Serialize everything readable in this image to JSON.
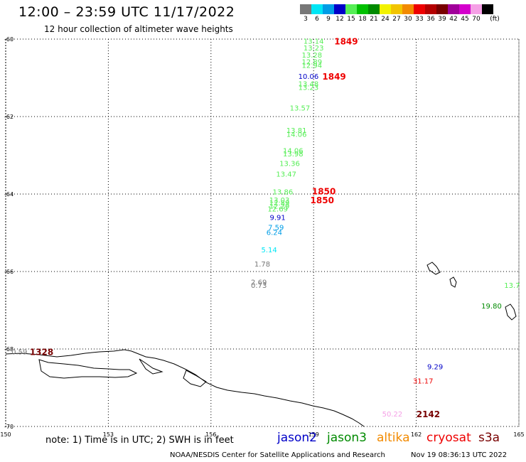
{
  "header": {
    "title": "12:00 – 23:59 UTC 11/17/2022",
    "subtitle": "12 hour collection of altimeter wave heights"
  },
  "legend": {
    "unit": "(ft)",
    "items": [
      {
        "label": "3",
        "color": "#777777"
      },
      {
        "label": "6",
        "color": "#00e6f5"
      },
      {
        "label": "9",
        "color": "#009de6"
      },
      {
        "label": "12",
        "color": "#0000c8"
      },
      {
        "label": "15",
        "color": "#55ee55"
      },
      {
        "label": "18",
        "color": "#00c000"
      },
      {
        "label": "21",
        "color": "#008a00"
      },
      {
        "label": "24",
        "color": "#f2f200"
      },
      {
        "label": "27",
        "color": "#f2c400"
      },
      {
        "label": "30",
        "color": "#f28a00"
      },
      {
        "label": "33",
        "color": "#ee0000"
      },
      {
        "label": "36",
        "color": "#b40000"
      },
      {
        "label": "39",
        "color": "#780000"
      },
      {
        "label": "42",
        "color": "#a0009a"
      },
      {
        "label": "45",
        "color": "#d400cc"
      },
      {
        "label": "70",
        "color": "#f5a0e6"
      },
      {
        "label": "",
        "color": "#000000"
      }
    ]
  },
  "map": {
    "lat_labels": [
      {
        "label": "-60",
        "lat": -60
      },
      {
        "label": "-62",
        "lat": -62
      },
      {
        "label": "-64",
        "lat": -64
      },
      {
        "label": "-66",
        "lat": -66
      },
      {
        "label": "-68",
        "lat": -68
      },
      {
        "label": "-70",
        "lat": -70
      }
    ],
    "lon_labels": [
      {
        "label": "150",
        "lon": 150
      },
      {
        "label": "153",
        "lon": 153
      },
      {
        "label": "156",
        "lon": 156
      },
      {
        "label": "159",
        "lon": 159
      },
      {
        "label": "162",
        "lon": 162
      },
      {
        "label": "165",
        "lon": 165
      }
    ],
    "observations": [
      {
        "text": "13.14",
        "lon": 159.0,
        "lat": -60.05,
        "color": "#55ee55"
      },
      {
        "text": "13.23",
        "lon": 159.0,
        "lat": -60.22,
        "color": "#55ee55"
      },
      {
        "text": "13.28",
        "lon": 158.95,
        "lat": -60.4,
        "color": "#55ee55"
      },
      {
        "text": "12.89",
        "lon": 158.95,
        "lat": -60.58,
        "color": "#55ee55"
      },
      {
        "text": "12.94",
        "lon": 158.95,
        "lat": -60.67,
        "color": "#55ee55"
      },
      {
        "text": "10.06",
        "lon": 158.85,
        "lat": -60.95,
        "color": "#0000c8"
      },
      {
        "text": "13.48",
        "lon": 158.85,
        "lat": -61.15,
        "color": "#55ee55"
      },
      {
        "text": "13.23",
        "lon": 158.85,
        "lat": -61.24,
        "color": "#55ee55"
      },
      {
        "text": "13.57",
        "lon": 158.6,
        "lat": -61.77,
        "color": "#55ee55"
      },
      {
        "text": "13.81",
        "lon": 158.5,
        "lat": -62.35,
        "color": "#55ee55"
      },
      {
        "text": "14.06",
        "lon": 158.5,
        "lat": -62.45,
        "color": "#55ee55"
      },
      {
        "text": "14.06",
        "lon": 158.4,
        "lat": -62.87,
        "color": "#55ee55"
      },
      {
        "text": "13.98",
        "lon": 158.4,
        "lat": -62.95,
        "color": "#55ee55"
      },
      {
        "text": "13.36",
        "lon": 158.3,
        "lat": -63.2,
        "color": "#55ee55"
      },
      {
        "text": "13.47",
        "lon": 158.2,
        "lat": -63.48,
        "color": "#55ee55"
      },
      {
        "text": "13.86",
        "lon": 158.1,
        "lat": -63.94,
        "color": "#55ee55"
      },
      {
        "text": "13.03",
        "lon": 158.0,
        "lat": -64.15,
        "color": "#55ee55"
      },
      {
        "text": "12.89",
        "lon": 158.0,
        "lat": -64.22,
        "color": "#55ee55"
      },
      {
        "text": "12.29",
        "lon": 158.0,
        "lat": -64.3,
        "color": "#55ee55"
      },
      {
        "text": "12.69",
        "lon": 157.95,
        "lat": -64.38,
        "color": "#55ee55"
      },
      {
        "text": "9.91",
        "lon": 157.95,
        "lat": -64.6,
        "color": "#0000c8"
      },
      {
        "text": "7.59",
        "lon": 157.9,
        "lat": -64.85,
        "color": "#009de6"
      },
      {
        "text": "6.24",
        "lon": 157.85,
        "lat": -64.98,
        "color": "#009de6"
      },
      {
        "text": "5.14",
        "lon": 157.7,
        "lat": -65.43,
        "color": "#00e6f5"
      },
      {
        "text": "1.78",
        "lon": 157.5,
        "lat": -65.8,
        "color": "#777777"
      },
      {
        "text": "2.69",
        "lon": 157.4,
        "lat": -66.27,
        "color": "#777777"
      },
      {
        "text": "0.73",
        "lon": 157.4,
        "lat": -66.35,
        "color": "#777777"
      },
      {
        "text": "0.59",
        "lon": 150.4,
        "lat": -68.06,
        "color": "#777777"
      },
      {
        "text": "13.7",
        "lon": 164.8,
        "lat": -66.35,
        "color": "#55ee55"
      },
      {
        "text": "19.80",
        "lon": 164.2,
        "lat": -66.88,
        "color": "#008a00"
      },
      {
        "text": "9.29",
        "lon": 162.55,
        "lat": -68.45,
        "color": "#0000c8"
      },
      {
        "text": "31.17",
        "lon": 162.2,
        "lat": -68.82,
        "color": "#ee0000"
      },
      {
        "text": "50.22",
        "lon": 161.3,
        "lat": -69.67,
        "color": "#f5a0e6"
      }
    ],
    "time_labels": [
      {
        "text": "1849",
        "lon": 159.95,
        "lat": -60.05,
        "color": "#ee0000"
      },
      {
        "text": "1849",
        "lon": 159.6,
        "lat": -60.95,
        "color": "#ee0000"
      },
      {
        "text": "1850",
        "lon": 159.3,
        "lat": -63.92,
        "color": "#ee0000"
      },
      {
        "text": "1850",
        "lon": 159.25,
        "lat": -64.15,
        "color": "#ee0000"
      },
      {
        "text": "1328",
        "lon": 151.05,
        "lat": -68.06,
        "color": "#780000"
      },
      {
        "text": "2142",
        "lon": 162.35,
        "lat": -69.67,
        "color": "#780000"
      }
    ]
  },
  "footer": {
    "note": "note:  1) Time is in UTC;  2) SWH is in feet",
    "satellites": [
      {
        "name": "jason2",
        "color": "#0000c8"
      },
      {
        "name": "jason3",
        "color": "#008a00"
      },
      {
        "name": "altika",
        "color": "#f28a00"
      },
      {
        "name": "cryosat",
        "color": "#ee0000"
      },
      {
        "name": "s3a",
        "color": "#780000"
      }
    ],
    "credit": "NOAA/NESDIS Center for Satellite Applications and Research",
    "timestamp": "Nov 19 08:36:13 UTC 2022"
  }
}
